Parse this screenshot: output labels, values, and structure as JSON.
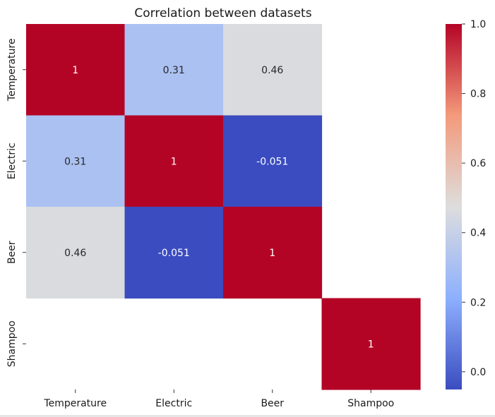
{
  "chart_data": {
    "type": "heatmap",
    "title": "Correlation between datasets",
    "xlabel": "",
    "ylabel": "",
    "rows": [
      "Temperature",
      "Electric",
      "Beer",
      "Shampoo"
    ],
    "columns": [
      "Temperature",
      "Electric",
      "Beer",
      "Shampoo"
    ],
    "values": [
      [
        1,
        0.31,
        0.46,
        null
      ],
      [
        0.31,
        1,
        -0.051,
        null
      ],
      [
        0.46,
        -0.051,
        1,
        null
      ],
      [
        null,
        null,
        null,
        1
      ]
    ],
    "annotations": [
      [
        "1",
        "0.31",
        "0.46",
        ""
      ],
      [
        "0.31",
        "1",
        "-0.051",
        ""
      ],
      [
        "0.46",
        "-0.051",
        "1",
        ""
      ],
      [
        "",
        "",
        "",
        "1"
      ]
    ],
    "colormap": "coolwarm",
    "colorbar": {
      "min": -0.051,
      "max": 1.0,
      "ticks": [
        0.0,
        0.2,
        0.4,
        0.6,
        0.8,
        1.0
      ],
      "tick_labels": [
        "0.0",
        "0.2",
        "0.4",
        "0.6",
        "0.8",
        "1.0"
      ]
    },
    "grid": false,
    "legend": "colorbar-right"
  }
}
